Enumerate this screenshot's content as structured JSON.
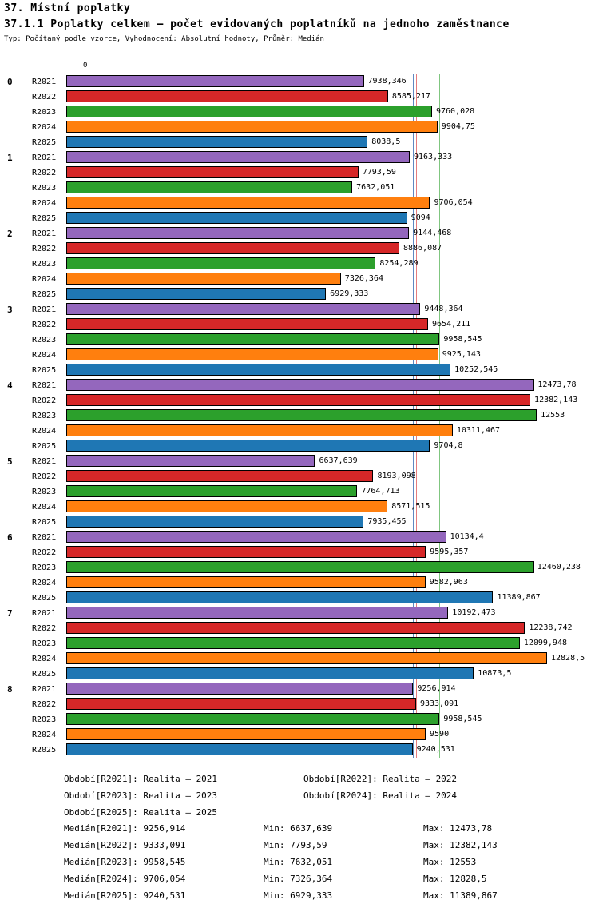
{
  "header": {
    "title": "37. Místní poplatky",
    "subtitle": "37.1.1 Poplatky celkem – počet evidovaných poplatníků na jednoho zaměstnance",
    "meta": "Typ: Počítaný podle vzorce, Vyhodnocení: Absolutní hodnoty, Průměr: Medián"
  },
  "chart_data": {
    "type": "bar",
    "orientation": "horizontal",
    "x_axis": {
      "zero_label": "0",
      "max": 12828.5
    },
    "legend_position": "bottom",
    "grid": false,
    "series": [
      {
        "name": "R2021",
        "color": "#9467bd",
        "median": "9256,914"
      },
      {
        "name": "R2022",
        "color": "#d62728",
        "median": "9333,091"
      },
      {
        "name": "R2023",
        "color": "#2ca02c",
        "median": "9958,545"
      },
      {
        "name": "R2024",
        "color": "#ff7f0e",
        "median": "9706,054"
      },
      {
        "name": "R2025",
        "color": "#1f77b4",
        "median": "9240,531"
      }
    ],
    "categories": [
      "0",
      "1",
      "2",
      "3",
      "4",
      "5",
      "6",
      "7",
      "8"
    ],
    "groups": [
      {
        "label": "0",
        "values": [
          "7938,346",
          "8585,217",
          "9760,028",
          "9904,75",
          "8038,5"
        ]
      },
      {
        "label": "1",
        "values": [
          "9163,333",
          "7793,59",
          "7632,051",
          "9706,054",
          "9094"
        ]
      },
      {
        "label": "2",
        "values": [
          "9144,468",
          "8886,087",
          "8254,289",
          "7326,364",
          "6929,333"
        ]
      },
      {
        "label": "3",
        "values": [
          "9448,364",
          "9654,211",
          "9958,545",
          "9925,143",
          "10252,545"
        ]
      },
      {
        "label": "4",
        "values": [
          "12473,78",
          "12382,143",
          "12553",
          "10311,467",
          "9704,8"
        ]
      },
      {
        "label": "5",
        "values": [
          "6637,639",
          "8193,098",
          "7764,713",
          "8571,515",
          "7935,455"
        ]
      },
      {
        "label": "6",
        "values": [
          "10134,4",
          "9595,357",
          "12460,238",
          "9582,963",
          "11389,867"
        ]
      },
      {
        "label": "7",
        "values": [
          "10192,473",
          "12238,742",
          "12099,948",
          "12828,5",
          "10873,5"
        ]
      },
      {
        "label": "8",
        "values": [
          "9256,914",
          "9333,091",
          "9958,545",
          "9590",
          "9240,531"
        ]
      }
    ]
  },
  "legend": {
    "items": [
      "Období[R2021]: Realita – 2021",
      "Období[R2022]: Realita – 2022",
      "Období[R2023]: Realita – 2023",
      "Období[R2024]: Realita – 2024",
      "Období[R2025]: Realita – 2025"
    ]
  },
  "stats": {
    "rows": [
      {
        "median": "Medián[R2021]: 9256,914",
        "min": "Min: 6637,639",
        "max": "Max: 12473,78"
      },
      {
        "median": "Medián[R2022]: 9333,091",
        "min": "Min: 7793,59",
        "max": "Max: 12382,143"
      },
      {
        "median": "Medián[R2023]: 9958,545",
        "min": "Min: 7632,051",
        "max": "Max: 12553"
      },
      {
        "median": "Medián[R2024]: 9706,054",
        "min": "Min: 7326,364",
        "max": "Max: 12828,5"
      },
      {
        "median": "Medián[R2025]: 9240,531",
        "min": "Min: 6929,333",
        "max": "Max: 11389,867"
      }
    ]
  }
}
